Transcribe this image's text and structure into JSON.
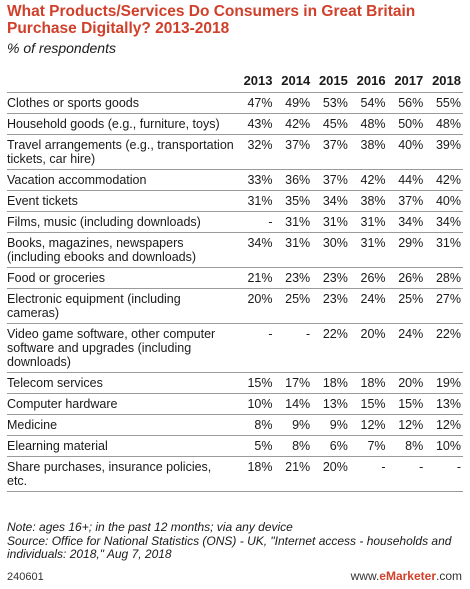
{
  "title": "What Products/Services Do Consumers in Great Britain Purchase Digitally? 2013-2018",
  "subtitle": "% of respondents",
  "note": "Note: ages 16+; in the past 12 months; via any device",
  "source": "Source: Office for National Statistics (ONS) - UK, \"Internet access - households and individuals: 2018,\" Aug 7, 2018",
  "footer_id": "240601",
  "brand_prefix": "www.",
  "brand_em": "eMarketer",
  "brand_suffix": ".com",
  "colors": {
    "title": "#d0402a",
    "rule": "#9a9a9a"
  },
  "chart_data": {
    "type": "table",
    "title": "What Products/Services Do Consumers in Great Britain Purchase Digitally? 2013-2018",
    "subtitle": "% of respondents",
    "columns": [
      "2013",
      "2014",
      "2015",
      "2016",
      "2017",
      "2018"
    ],
    "rows": [
      {
        "label": "Clothes or sports goods",
        "values": [
          "47%",
          "49%",
          "53%",
          "54%",
          "56%",
          "55%"
        ]
      },
      {
        "label": "Household goods (e.g., furniture, toys)",
        "values": [
          "43%",
          "42%",
          "45%",
          "48%",
          "50%",
          "48%"
        ]
      },
      {
        "label": "Travel arrangements (e.g., transportation tickets, car hire)",
        "values": [
          "32%",
          "37%",
          "37%",
          "38%",
          "40%",
          "39%"
        ]
      },
      {
        "label": "Vacation accommodation",
        "values": [
          "33%",
          "36%",
          "37%",
          "42%",
          "44%",
          "42%"
        ]
      },
      {
        "label": "Event tickets",
        "values": [
          "31%",
          "35%",
          "34%",
          "38%",
          "37%",
          "40%"
        ]
      },
      {
        "label": "Films, music (including downloads)",
        "values": [
          "-",
          "31%",
          "31%",
          "31%",
          "34%",
          "34%"
        ]
      },
      {
        "label": "Books, magazines, newspapers (including ebooks and downloads)",
        "values": [
          "34%",
          "31%",
          "30%",
          "31%",
          "29%",
          "31%"
        ]
      },
      {
        "label": "Food or groceries",
        "values": [
          "21%",
          "23%",
          "23%",
          "26%",
          "26%",
          "28%"
        ]
      },
      {
        "label": "Electronic equipment (including cameras)",
        "values": [
          "20%",
          "25%",
          "23%",
          "24%",
          "25%",
          "27%"
        ]
      },
      {
        "label": "Video game software, other computer software and upgrades (including downloads)",
        "values": [
          "-",
          "-",
          "22%",
          "20%",
          "24%",
          "22%"
        ]
      },
      {
        "label": "Telecom services",
        "values": [
          "15%",
          "17%",
          "18%",
          "18%",
          "20%",
          "19%"
        ]
      },
      {
        "label": "Computer hardware",
        "values": [
          "10%",
          "14%",
          "13%",
          "15%",
          "15%",
          "13%"
        ]
      },
      {
        "label": "Medicine",
        "values": [
          "8%",
          "9%",
          "9%",
          "12%",
          "12%",
          "12%"
        ]
      },
      {
        "label": "Elearning material",
        "values": [
          "5%",
          "8%",
          "6%",
          "7%",
          "8%",
          "10%"
        ]
      },
      {
        "label": "Share purchases, insurance policies, etc.",
        "values": [
          "18%",
          "21%",
          "20%",
          "-",
          "-",
          "-"
        ]
      }
    ]
  }
}
